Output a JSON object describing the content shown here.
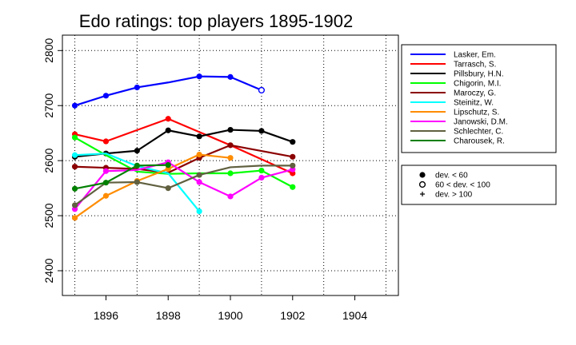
{
  "chart_data": {
    "type": "line",
    "title": "Edo ratings: top players 1895-1902",
    "xlabel": "",
    "ylabel": "",
    "xlim": [
      1894.6,
      1905.4
    ],
    "ylim": [
      2355,
      2828
    ],
    "xticks": [
      1896,
      1898,
      1900,
      1902,
      1904
    ],
    "yticks": [
      2400,
      2500,
      2600,
      2700,
      2800
    ],
    "grid": "dotted",
    "legend_position": "right",
    "series": [
      {
        "name": "Lasker, Em.",
        "color": "#0000ff",
        "x": [
          1895,
          1896,
          1897,
          1898,
          1899,
          1900,
          1901
        ],
        "y": [
          2700,
          2718,
          2733,
          2742,
          2753,
          2752,
          2728
        ],
        "markers": [
          "dot",
          "dot",
          "dot",
          "none",
          "dot",
          "dot",
          "open"
        ]
      },
      {
        "name": "Tarrasch, S.",
        "color": "#ff0000",
        "x": [
          1895,
          1896,
          1898,
          1900,
          1902
        ],
        "y": [
          2648,
          2635,
          2676,
          2628,
          2577
        ],
        "markers": [
          "dot",
          "dot",
          "dot",
          "none",
          "dot"
        ]
      },
      {
        "name": "Pillsbury, H.N.",
        "color": "#000000",
        "x": [
          1895,
          1896,
          1897,
          1898,
          1899,
          1900,
          1901,
          1902
        ],
        "y": [
          2607,
          2613,
          2618,
          2655,
          2644,
          2656,
          2654,
          2634
        ],
        "markers": [
          "dot",
          "dot",
          "dot",
          "dot",
          "dot",
          "dot",
          "dot",
          "dot"
        ]
      },
      {
        "name": "Chigorin, M.I.",
        "color": "#00ff00",
        "x": [
          1895,
          1896,
          1897,
          1898,
          1899,
          1900,
          1901,
          1902
        ],
        "y": [
          2642,
          2610,
          2580,
          2576,
          2577,
          2577,
          2582,
          2552
        ],
        "markers": [
          "dot",
          "none",
          "none",
          "none",
          "none",
          "dot",
          "dot",
          "dot"
        ]
      },
      {
        "name": "Maroczy, G.",
        "color": "#8b0000",
        "x": [
          1895,
          1896,
          1897,
          1898,
          1899,
          1900,
          1902
        ],
        "y": [
          2589,
          2587,
          2585,
          2578,
          2605,
          2628,
          2607
        ],
        "markers": [
          "dot",
          "dot",
          "none",
          "none",
          "dot",
          "dot",
          "dot"
        ]
      },
      {
        "name": "Steinitz, W.",
        "color": "#00ffff",
        "x": [
          1895,
          1896,
          1897,
          1898,
          1899
        ],
        "y": [
          2610,
          2613,
          2590,
          2577,
          2508
        ],
        "markers": [
          "dot",
          "none",
          "none",
          "none",
          "dot"
        ]
      },
      {
        "name": "Lipschutz, S.",
        "color": "#ff8c00",
        "x": [
          1895,
          1896,
          1897,
          1898,
          1899,
          1900
        ],
        "y": [
          2496,
          2536,
          2563,
          2585,
          2611,
          2605
        ],
        "markers": [
          "dot",
          "dot",
          "dot",
          "dot",
          "dot",
          "dot"
        ]
      },
      {
        "name": "Janowski, D.M.",
        "color": "#ff00ff",
        "x": [
          1895,
          1896,
          1897,
          1898,
          1899,
          1900,
          1901,
          1902
        ],
        "y": [
          2512,
          2581,
          2583,
          2597,
          2561,
          2535,
          2569,
          2584
        ],
        "markers": [
          "dot",
          "dot",
          "none",
          "dot",
          "dot",
          "dot",
          "dot",
          "dot"
        ]
      },
      {
        "name": "Schlechter, C.",
        "color": "#606040",
        "x": [
          1895,
          1896,
          1897,
          1898,
          1899,
          1900,
          1901,
          1902
        ],
        "y": [
          2519,
          2560,
          2561,
          2550,
          2574,
          2588,
          2591,
          2591
        ],
        "markers": [
          "dot",
          "none",
          "dot",
          "dot",
          "dot",
          "none",
          "none",
          "dot"
        ]
      },
      {
        "name": "Charousek, R.",
        "color": "#008000",
        "x": [
          1895,
          1896,
          1897,
          1898
        ],
        "y": [
          2549,
          2560,
          2591,
          2592
        ],
        "markers": [
          "dot",
          "dot",
          "dot",
          "dot"
        ]
      }
    ],
    "marker_legend": [
      {
        "symbol": "dot",
        "label": "dev. < 60"
      },
      {
        "symbol": "open",
        "label": "60 < dev. < 100"
      },
      {
        "symbol": "plus",
        "label": "dev. > 100"
      }
    ]
  }
}
